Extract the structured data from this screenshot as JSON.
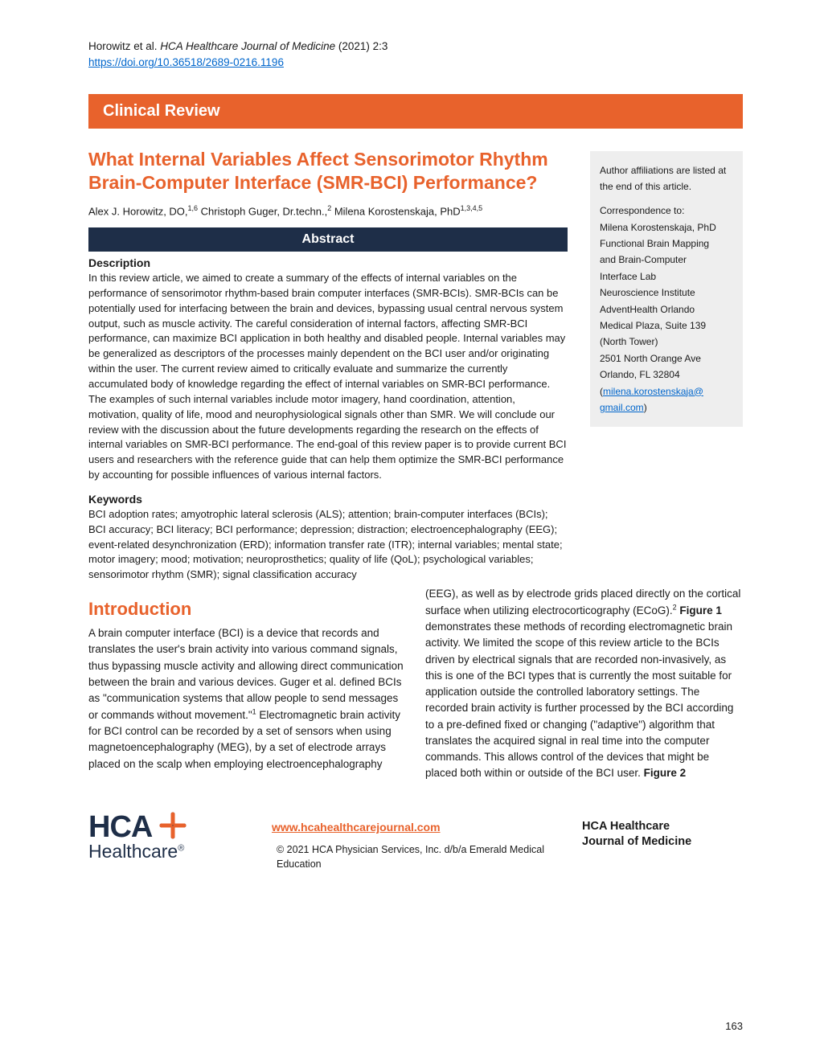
{
  "header": {
    "citation_prefix": "Horowitz et al. ",
    "citation_italic": "HCA Healthcare Journal of Medicine",
    "citation_suffix": " (2021) 2:3",
    "doi": "https://doi.org/10.36518/2689-0216.1196"
  },
  "banner": "Clinical Review",
  "title": "What Internal Variables Affect Sensorimotor Rhythm Brain-Computer Interface (SMR-BCI) Performance?",
  "authors_html": "Alex J. Horowitz, DO,<span class='sup'>1,6</span> Christoph Guger, Dr.techn.,<span class='sup'>2</span> Milena Korostenskaja, PhD<span class='sup'>1,3,4,5</span>",
  "abstract_label": "Abstract",
  "description_label": "Description",
  "description_text": "In this review article, we aimed to create a summary of the effects of internal variables on the performance of sensorimotor rhythm-based brain computer interfaces (SMR-BCIs). SMR-BCIs can be potentially used for interfacing between the brain and devices, bypassing usual central nervous system output, such as muscle activity. The careful consideration of internal factors, affecting SMR-BCI performance, can maximize BCI application in both healthy and disabled people. Internal variables may be generalized as descriptors of the processes mainly dependent on the BCI user and/or originating within the user. The current review aimed to critically evaluate and summarize the currently accumulated body of knowledge regarding the effect of internal variables on SMR-BCI performance. The examples of such internal variables include motor imagery, hand coordination, attention, motivation, quality of life, mood and neurophysiological signals other than SMR. We will conclude our review with the discussion about the future developments regarding the research on the effects of internal variables on SMR-BCI performance. The end-goal of this review paper is to provide current BCI users and researchers with the reference guide that can help them optimize the SMR-BCI performance by accounting for possible influences of various internal factors.",
  "keywords_label": "Keywords",
  "keywords_text": "BCI adoption rates; amyotrophic lateral sclerosis (ALS); attention; brain-computer interfaces (BCIs); BCI accuracy; BCI literacy; BCI performance; depression; distraction; electroencephalography (EEG); event-related desynchronization (ERD); information transfer rate (ITR); internal variables; mental state; motor imagery; mood; motivation; neuroprosthetics; quality of life (QoL); psychological variables; sensorimotor rhythm (SMR); signal classification accuracy",
  "intro_label": "Introduction",
  "intro_col1": " A brain computer interface (BCI) is a device that records and translates the user's brain activity into various command signals, thus bypassing muscle activity and allowing direct communication between the brain and various devices. Guger et al. defined BCIs as \"communication systems that allow people to send messages or commands without movement.\"<span class='sup'>1</span> Electromagnetic brain activity for BCI control can be recorded by a set of sensors when using magnetoencephalography (MEG), by a set of electrode arrays placed on the scalp when employing electroencephalography (EEG), as well as by electrode grids placed directly on the ",
  "intro_col2": "cortical surface when utilizing electrocorticography (ECoG).<span class='sup'>2</span> <b>Figure 1</b> demonstrates these methods of recording electromagnetic brain activity. We limited the scope of this review article to the BCIs driven by electrical signals that are recorded non-invasively, as this is one of the BCI types that is currently the most suitable for application outside the controlled laboratory settings. The recorded brain activity is further processed by the BCI according to a pre-defined fixed or changing (\"adaptive\") algorithm that translates the acquired signal in real time into the computer commands. This allows control of the devices that might be placed both within or outside of the BCI user. <b>Figure 2</b>",
  "sidebar": {
    "affil": "Author affiliations are listed at the end of this article.",
    "corr_label": "Correspondence to:",
    "name": "Milena Korostenskaja, PhD",
    "line1": "Functional Brain Mapping",
    "line2": " and Brain-Computer",
    "line3": " Interface Lab",
    "line4": "Neuroscience Institute",
    "line5": "AdventHealth Orlando",
    "line6": "Medical Plaza, Suite 139",
    "line7": " (North Tower)",
    "line8": "2501 North Orange Ave",
    "line9": "Orlando, FL  32804",
    "email1": "milena.korostenskaja@",
    "email2": "gmail.com"
  },
  "footer": {
    "logo_main": "HCA",
    "logo_sub": "Healthcare",
    "journal_url": "www.hcahealthcarejournal.com",
    "copyright": "©  2021 HCA Physician Services, Inc. d/b/a Emerald Medical Education",
    "journal_name1": "HCA Healthcare",
    "journal_name2": "Journal of Medicine"
  },
  "page_number": "163"
}
